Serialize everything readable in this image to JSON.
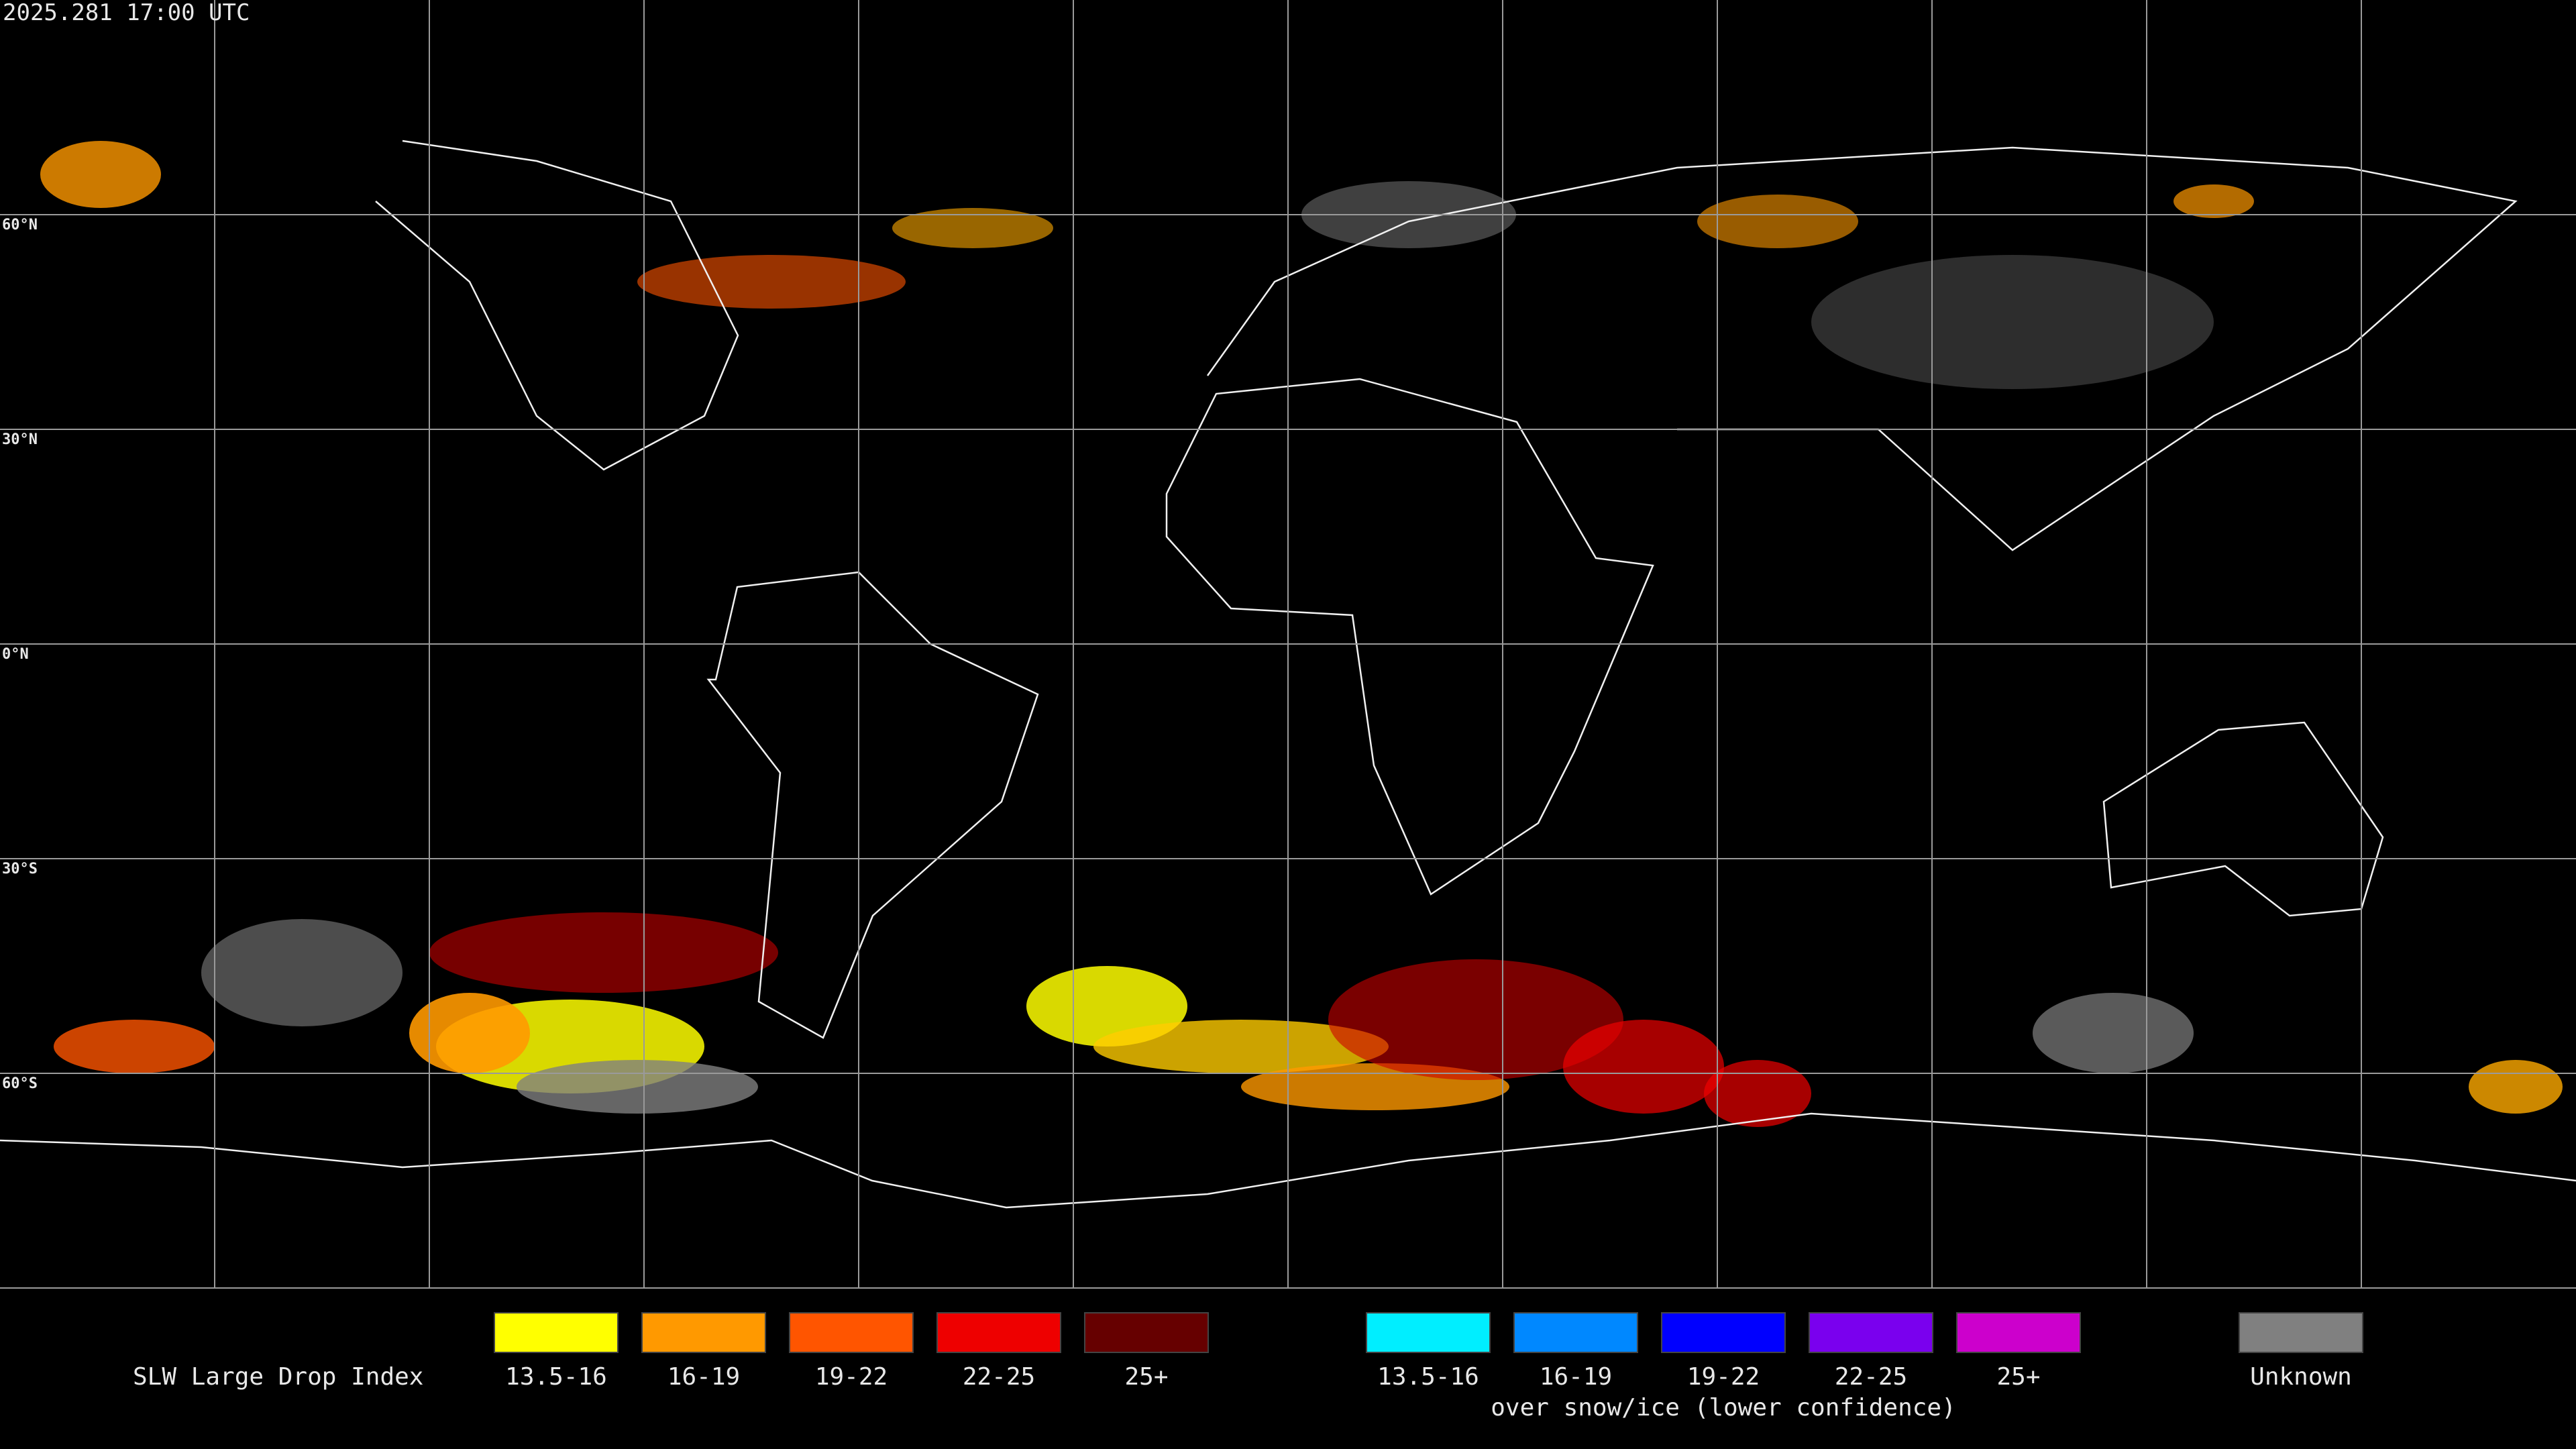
{
  "header": {
    "timestamp": "2025.281 17:00 UTC"
  },
  "map": {
    "latitude_labels": [
      "60°N",
      "30°N",
      "0°N",
      "30°S",
      "60°S"
    ]
  },
  "legend": {
    "title": "SLW Large Drop Index",
    "groups": [
      {
        "items": [
          {
            "label": "13.5-16",
            "color": "#ffff00"
          },
          {
            "label": "16-19",
            "color": "#ff9900"
          },
          {
            "label": "19-22",
            "color": "#ff5500"
          },
          {
            "label": "22-25",
            "color": "#ee0000"
          },
          {
            "label": "25+",
            "color": "#660000"
          }
        ]
      },
      {
        "caption": "over snow/ice (lower confidence)",
        "items": [
          {
            "label": "13.5-16",
            "color": "#00eeff"
          },
          {
            "label": "16-19",
            "color": "#0088ff"
          },
          {
            "label": "19-22",
            "color": "#0000ff"
          },
          {
            "label": "22-25",
            "color": "#7a00ee"
          },
          {
            "label": "25+",
            "color": "#cc00cc"
          }
        ]
      },
      {
        "items": [
          {
            "label": "Unknown",
            "color": "#808080"
          }
        ]
      }
    ]
  }
}
